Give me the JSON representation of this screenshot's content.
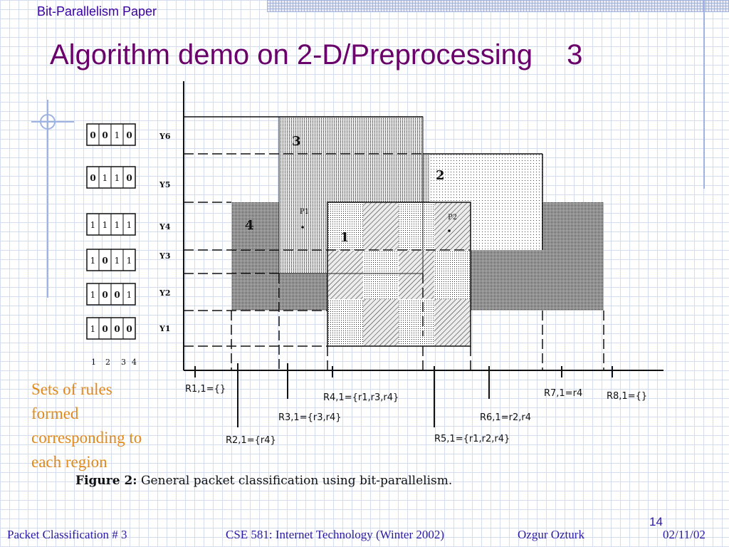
{
  "header": {
    "label": "Bit-Parallelism Paper"
  },
  "title": {
    "text": "Algorithm demo on 2-D/Preprocessing",
    "number": "3"
  },
  "note": {
    "lines": [
      "Sets of rules",
      "formed",
      "corresponding to",
      "each region"
    ]
  },
  "figure": {
    "y_labels": [
      "Y6",
      "Y5",
      "Y4",
      "Y3",
      "Y2",
      "Y1"
    ],
    "bit_vectors": [
      [
        "0",
        "0",
        "1",
        "0"
      ],
      [
        "0",
        "1",
        "1",
        "0"
      ],
      [
        "1",
        "1",
        "1",
        "1"
      ],
      [
        "1",
        "0",
        "1",
        "1"
      ],
      [
        "1",
        "0",
        "0",
        "1"
      ],
      [
        "1",
        "0",
        "0",
        "0"
      ]
    ],
    "bit_columns": [
      "1",
      "2",
      "3",
      "4"
    ],
    "rule_labels": [
      "1",
      "2",
      "3",
      "4"
    ],
    "points": [
      "P1",
      "P2"
    ],
    "x_labels": [
      "R1,1={}",
      "R2,1={r4}",
      "R3,1={r3,r4}",
      "R4,1={r1,r3,r4}",
      "R5,1={r1,r2,r4}",
      "R6,1=r2,r4",
      "R7,1=r4",
      "R8,1={}"
    ],
    "caption_bold": "Figure 2:",
    "caption_text": " General packet classification using bit-parallelism."
  },
  "footer": {
    "left": "Packet Classification # 3",
    "center": "CSE 581: Internet Technology (Winter 2002)",
    "author": "Ozgur Ozturk",
    "date": "02/11/02",
    "page": "14"
  }
}
